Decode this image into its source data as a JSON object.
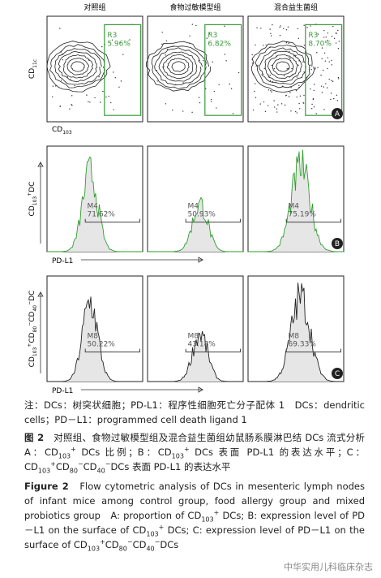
{
  "columns": [
    "对照组",
    "食物过敏模型组",
    "混合益生菌组"
  ],
  "rows": [
    {
      "panel": "A",
      "y_label": [
        {
          "t": "CD"
        },
        {
          "sub": "11c"
        }
      ],
      "x_label": [
        {
          "t": "CD"
        },
        {
          "sub": "103"
        }
      ],
      "gates": [
        {
          "name": "R3",
          "percent": "5.96%"
        },
        {
          "name": "R3",
          "percent": "6.82%"
        },
        {
          "name": "R3",
          "percent": "8.70%"
        }
      ]
    },
    {
      "panel": "B",
      "y_label": [
        {
          "t": "CD"
        },
        {
          "sub": "103"
        },
        {
          "sup": "+"
        },
        {
          "t": "DC"
        }
      ],
      "x_label": [
        {
          "t": "PD-L1"
        }
      ],
      "gates": [
        {
          "name": "M4",
          "percent": "71.62%"
        },
        {
          "name": "M4",
          "percent": "50.93%"
        },
        {
          "name": "M4",
          "percent": "75.19%"
        }
      ]
    },
    {
      "panel": "C",
      "y_label": [
        {
          "t": "CD"
        },
        {
          "sub": "103"
        },
        {
          "sup": "+"
        },
        {
          "t": "CD"
        },
        {
          "sub": "80"
        },
        {
          "sup": "−"
        },
        {
          "t": "CD"
        },
        {
          "sub": "40"
        },
        {
          "sup": "−"
        },
        {
          "t": "DC"
        }
      ],
      "x_label": [
        {
          "t": "PD-L1"
        }
      ],
      "gates": [
        {
          "name": "M8",
          "percent": "50.22%"
        },
        {
          "name": "M8",
          "percent": "43.18%"
        },
        {
          "name": "M8",
          "percent": "69.33%"
        }
      ]
    }
  ],
  "note": [
    {
      "t": "注：DCs：树突状细胞；PD-L1：程序性细胞死亡分子配体 1　DCs：dendritic cells；PD－L1：programmed cell death ligand 1"
    }
  ],
  "caption_cn": [
    {
      "b": "图 2"
    },
    {
      "t": "　对照组、食物过敏模型组及混合益生菌组幼鼠肠系膜淋巴结 DCs 流式分析　A：CD"
    },
    {
      "sub": "103"
    },
    {
      "sup": "+"
    },
    {
      "t": " DCs 比例；B：CD"
    },
    {
      "sub": "103"
    },
    {
      "sup": "+"
    },
    {
      "t": " DCs 表面 PD-L1 的表达水平；C：CD"
    },
    {
      "sub": "103"
    },
    {
      "sup": "+"
    },
    {
      "t": "CD"
    },
    {
      "sub": "80"
    },
    {
      "sup": "−"
    },
    {
      "t": "CD"
    },
    {
      "sub": "40"
    },
    {
      "sup": "−"
    },
    {
      "t": "DCs 表面 PD-L1 的表达水平"
    }
  ],
  "caption_en": [
    {
      "b": "Figure 2"
    },
    {
      "t": "　Flow cytometric analysis of DCs in mesenteric lymph nodes of infant mice among control group, food allergy group and mixed probiotics group　A: proportion of CD"
    },
    {
      "sub": "103"
    },
    {
      "sup": "+"
    },
    {
      "t": " DCs; B: expression level of PD－L1 on the surface of CD"
    },
    {
      "sub": "103"
    },
    {
      "sup": "+"
    },
    {
      "t": " DCs; C: expression level of PD－L1 on the surface of CD"
    },
    {
      "sub": "103"
    },
    {
      "sup": "+"
    },
    {
      "t": "CD"
    },
    {
      "sub": "80"
    },
    {
      "sup": "−"
    },
    {
      "t": "CD"
    },
    {
      "sub": "40"
    },
    {
      "sup": "−"
    },
    {
      "t": "DCs"
    }
  ],
  "watermark": "中华实用儿科临床杂志"
}
